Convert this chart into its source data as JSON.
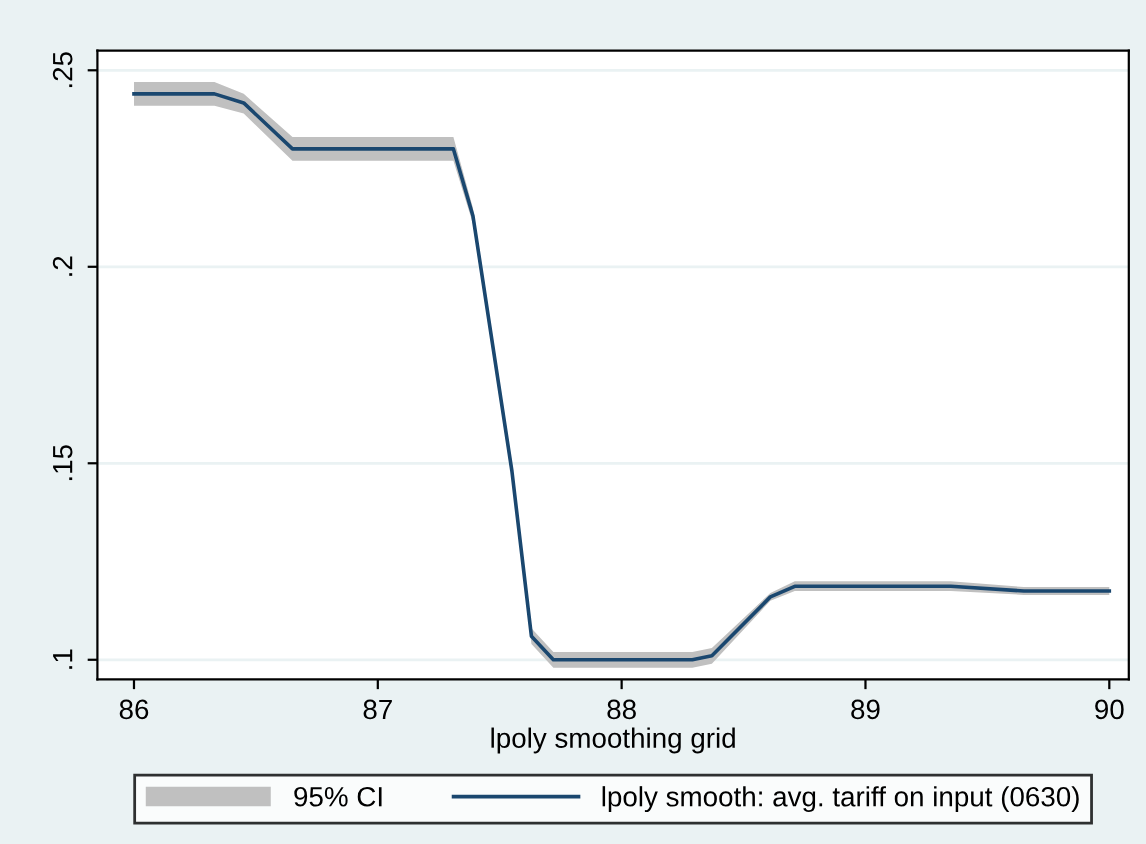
{
  "chart_data": {
    "type": "line",
    "xlabel": "lpoly smoothing grid",
    "x": [
      86,
      86.33,
      86.45,
      86.65,
      87.31,
      87.39,
      87.55,
      87.63,
      87.72,
      88.29,
      88.37,
      88.61,
      88.71,
      89.35,
      89.65,
      90
    ],
    "series": [
      {
        "name": "lpoly smooth: avg. tariff on input (0630)",
        "type": "line",
        "color": "#1a476f",
        "values": [
          0.244,
          0.244,
          0.2417,
          0.23,
          0.23,
          0.213,
          0.148,
          0.106,
          0.1,
          0.1,
          0.101,
          0.116,
          0.1187,
          0.1187,
          0.1175,
          0.1175
        ],
        "lower": [
          0.241,
          0.241,
          0.239,
          0.227,
          0.227,
          0.211,
          0.146,
          0.104,
          0.098,
          0.098,
          0.099,
          0.115,
          0.1175,
          0.1175,
          0.1165,
          0.1165
        ],
        "upper": [
          0.247,
          0.247,
          0.244,
          0.233,
          0.233,
          0.215,
          0.15,
          0.108,
          0.102,
          0.102,
          0.103,
          0.117,
          0.12,
          0.12,
          0.1185,
          0.1185
        ]
      }
    ],
    "annotations": [
      "95% CI"
    ],
    "xlim": [
      85.85,
      90.08
    ],
    "ylim": [
      0.095,
      0.255
    ],
    "xticks": [
      86,
      87,
      88,
      89,
      90
    ],
    "yticks": [
      {
        "value": 0.1,
        "label": ".1"
      },
      {
        "value": 0.15,
        "label": ".15"
      },
      {
        "value": 0.2,
        "label": ".2"
      },
      {
        "value": 0.25,
        "label": ".25"
      }
    ],
    "grid": "y",
    "legend": "bottom",
    "line_style": "solid",
    "marker": "none"
  }
}
